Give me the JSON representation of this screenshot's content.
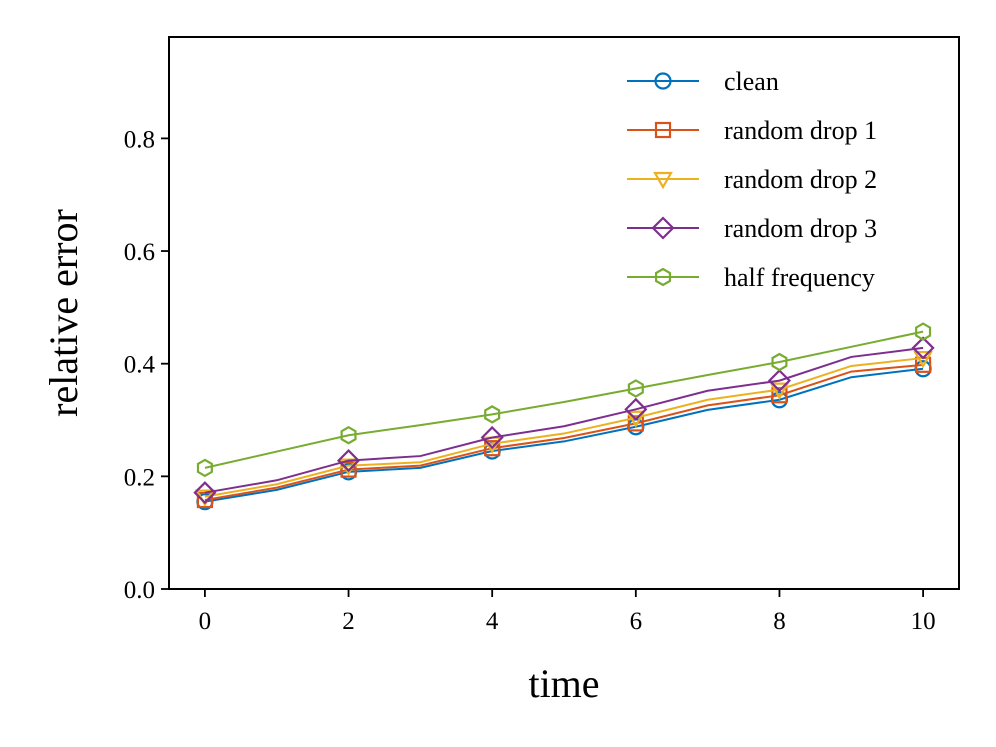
{
  "chart_data": {
    "type": "line",
    "title": "",
    "xlabel": "time",
    "ylabel": "relative error",
    "xlim": [
      -0.5,
      10.5
    ],
    "ylim": [
      0.0,
      0.98
    ],
    "xticks": [
      0,
      2,
      4,
      6,
      8,
      10
    ],
    "xtick_labels": [
      "0",
      "2",
      "4",
      "6",
      "8",
      "10"
    ],
    "yticks": [
      0.0,
      0.2,
      0.4,
      0.6,
      0.8
    ],
    "ytick_labels": [
      "0.0",
      "0.2",
      "0.4",
      "0.6",
      "0.8"
    ],
    "grid": false,
    "legend_position": "top-right",
    "x": [
      0,
      1,
      2,
      3,
      4,
      5,
      6,
      7,
      8,
      9,
      10
    ],
    "marker_every": 2,
    "series": [
      {
        "name": "clean",
        "color": "#0072BD",
        "marker": "circle",
        "values": [
          0.155,
          0.176,
          0.208,
          0.215,
          0.245,
          0.262,
          0.288,
          0.318,
          0.336,
          0.376,
          0.391
        ]
      },
      {
        "name": "random drop 1",
        "color": "#D95319",
        "marker": "square",
        "values": [
          0.158,
          0.18,
          0.212,
          0.219,
          0.25,
          0.268,
          0.294,
          0.326,
          0.344,
          0.386,
          0.398
        ]
      },
      {
        "name": "random drop 2",
        "color": "#EDB120",
        "marker": "triangle-down",
        "values": [
          0.164,
          0.186,
          0.219,
          0.225,
          0.258,
          0.276,
          0.304,
          0.336,
          0.354,
          0.396,
          0.41
        ]
      },
      {
        "name": "random drop 3",
        "color": "#7E2F8E",
        "marker": "diamond",
        "values": [
          0.171,
          0.193,
          0.228,
          0.236,
          0.269,
          0.289,
          0.319,
          0.352,
          0.37,
          0.412,
          0.428
        ]
      },
      {
        "name": "half frequency",
        "color": "#77AC30",
        "marker": "hexagon",
        "values": [
          0.215,
          0.244,
          0.273,
          0.291,
          0.31,
          0.332,
          0.356,
          0.38,
          0.403,
          0.43,
          0.457
        ]
      }
    ]
  }
}
